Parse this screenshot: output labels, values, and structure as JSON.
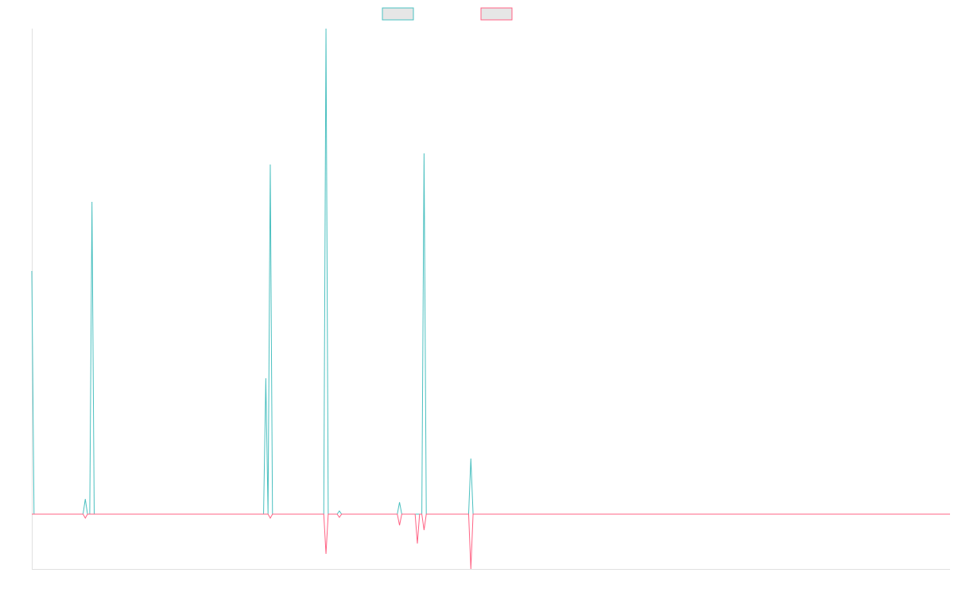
{
  "chart_data": {
    "type": "line",
    "x": [
      0,
      1,
      23,
      24,
      25,
      26,
      27,
      28,
      104,
      105,
      106,
      107,
      108,
      131,
      132,
      133,
      137,
      138,
      139,
      164,
      165,
      166,
      172,
      173,
      174,
      175,
      176,
      177,
      196,
      197,
      198,
      412
    ],
    "series": [
      {
        "color": "#4bc0c0",
        "values": [
          306,
          0,
          0,
          19,
          0,
          0,
          393,
          0,
          0,
          171,
          0,
          440,
          0,
          0,
          611,
          0,
          0,
          4,
          0,
          0,
          15,
          0,
          0,
          0,
          0,
          0,
          454,
          0,
          0,
          70,
          0,
          0
        ]
      },
      {
        "color": "#ff6384",
        "values": [
          0,
          0,
          0,
          -5,
          0,
          0,
          0,
          0,
          0,
          0,
          0,
          -5,
          0,
          0,
          -50,
          0,
          0,
          -4,
          0,
          0,
          -14,
          0,
          0,
          -37,
          0,
          0,
          -20,
          0,
          0,
          -69,
          0,
          0
        ]
      }
    ],
    "xlim": [
      0,
      412
    ],
    "ylim": [
      -69,
      611
    ],
    "legend": "top"
  }
}
